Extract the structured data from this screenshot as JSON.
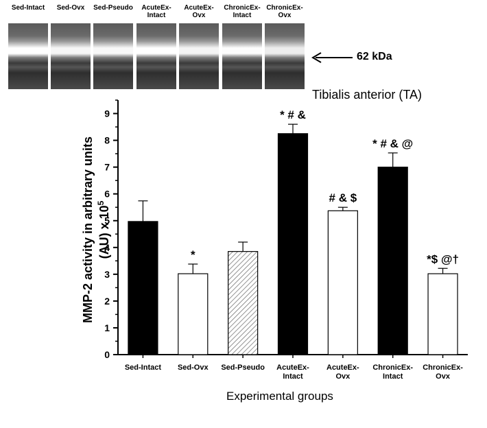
{
  "blot": {
    "lanes": [
      "Sed-Intact",
      "Sed-Ovx",
      "Sed-Pseudo",
      "AcuteEx-\nIntact",
      "AcuteEx-\nOvx",
      "ChronicEx-\nIntact",
      "ChronicEx-\nOvx"
    ],
    "marker_label": "62 kDa"
  },
  "tissue_title": "Tibialis anterior (TA)",
  "chart_data": {
    "type": "bar",
    "categories": [
      "Sed-Intact",
      "Sed-Ovx",
      "Sed-Pseudo",
      "AcuteEx-\nIntact",
      "AcuteEx-\nOvx",
      "ChronicEx-\nIntact",
      "ChronicEx-\nOvx"
    ],
    "values": [
      4.97,
      3.02,
      3.85,
      8.25,
      5.37,
      7.0,
      3.02
    ],
    "errors": [
      0.77,
      0.36,
      0.35,
      0.35,
      0.13,
      0.53,
      0.2
    ],
    "fills": [
      "black",
      "white",
      "hatch",
      "black",
      "white",
      "black",
      "white"
    ],
    "annotations": [
      "",
      "*",
      "",
      "* # &",
      "# & $",
      "* # & @",
      "*$ @†"
    ],
    "ylim": [
      0,
      9.5
    ],
    "yticks": [
      0,
      1,
      2,
      3,
      4,
      5,
      6,
      7,
      8,
      9
    ],
    "ylabel_line1": "MMP-2 activity in arbitrary units",
    "ylabel_line2": "(AU) x 10",
    "ylabel_sup": "5",
    "xlabel": "Experimental groups"
  }
}
